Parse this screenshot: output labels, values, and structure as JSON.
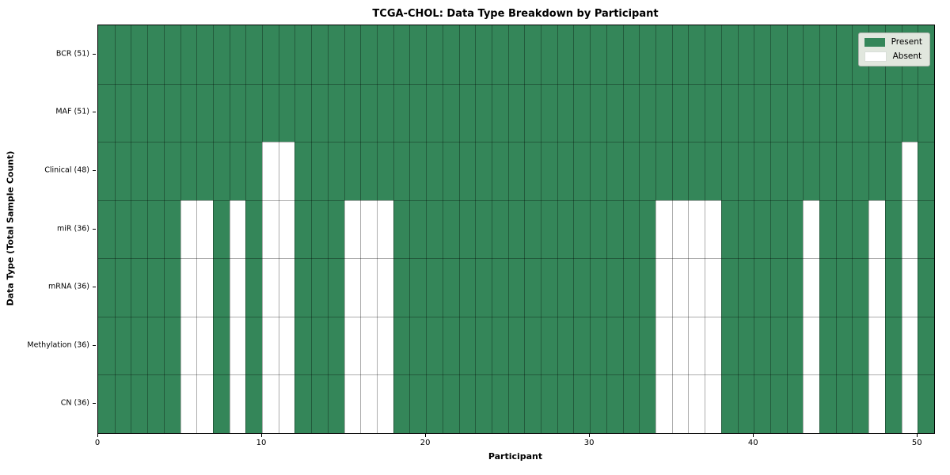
{
  "chart_data": {
    "type": "heatmap",
    "title": "TCGA-CHOL: Data Type Breakdown by Participant",
    "xlabel": "Participant",
    "ylabel": "Data Type (Total Sample Count)",
    "n_participants": 51,
    "x_ticks": [
      0,
      10,
      20,
      30,
      40,
      50
    ],
    "xlim": [
      0,
      51
    ],
    "grid": true,
    "legend_position": "upper right",
    "rows": [
      {
        "label": "BCR (51)",
        "present_count": 51,
        "absent_participants": []
      },
      {
        "label": "MAF (51)",
        "present_count": 51,
        "absent_participants": []
      },
      {
        "label": "Clinical (48)",
        "present_count": 48,
        "absent_participants": [
          10,
          11,
          49
        ]
      },
      {
        "label": "miR (36)",
        "present_count": 36,
        "absent_participants": [
          5,
          6,
          8,
          10,
          11,
          15,
          16,
          17,
          34,
          35,
          36,
          37,
          43,
          47,
          49
        ]
      },
      {
        "label": "mRNA (36)",
        "present_count": 36,
        "absent_participants": [
          5,
          6,
          8,
          10,
          11,
          15,
          16,
          17,
          34,
          35,
          36,
          37,
          43,
          47,
          49
        ]
      },
      {
        "label": "Methylation (36)",
        "present_count": 36,
        "absent_participants": [
          5,
          6,
          8,
          10,
          11,
          15,
          16,
          17,
          34,
          35,
          36,
          37,
          43,
          47,
          49
        ]
      },
      {
        "label": "CN (36)",
        "present_count": 36,
        "absent_participants": [
          5,
          6,
          8,
          10,
          11,
          15,
          16,
          17,
          34,
          35,
          36,
          37,
          43,
          47,
          49
        ]
      }
    ],
    "legend": [
      {
        "label": "Present",
        "color": "#348659"
      },
      {
        "label": "Absent",
        "color": "#ffffff"
      }
    ],
    "colors": {
      "present": "#348659",
      "absent": "#ffffff",
      "gridline": "rgba(0,0,0,0.32)",
      "plot_border": "#000000",
      "legend_bg": "#e1e7de"
    }
  }
}
